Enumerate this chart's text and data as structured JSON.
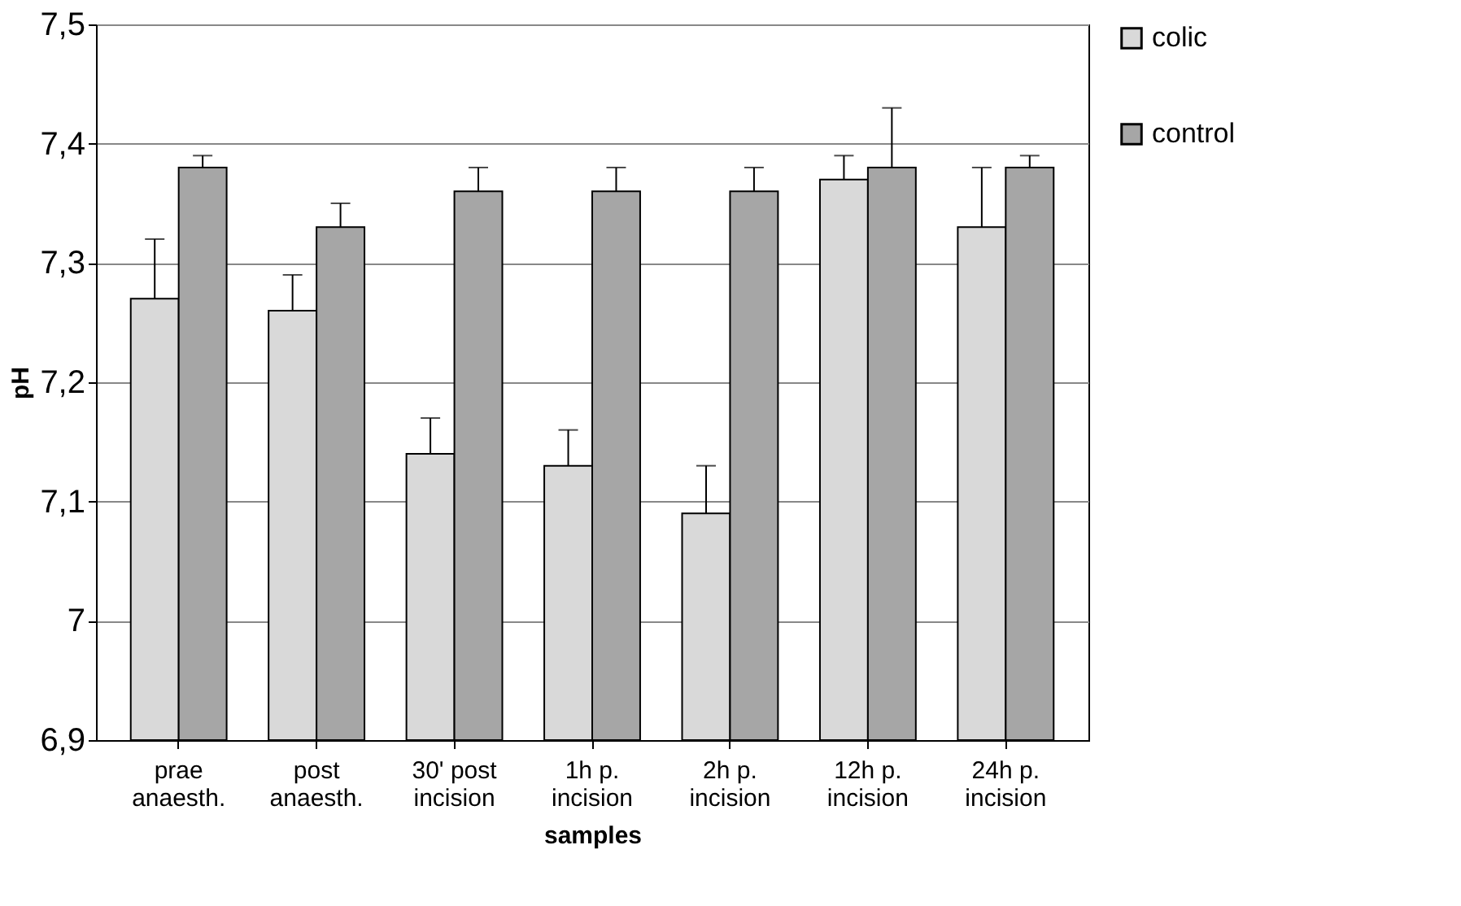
{
  "chart_data": {
    "type": "bar",
    "xlabel": "samples",
    "ylabel": "pH",
    "categories": [
      "prae\nanaesth.",
      "post\nanaesth.",
      "30' post\nincision",
      "1h p.\nincision",
      "2h p.\nincision",
      "12h p.\nincision",
      "24h p.\nincision"
    ],
    "series": [
      {
        "name": "colic",
        "color": "#d9d9d9",
        "values": [
          7.27,
          7.26,
          7.14,
          7.13,
          7.09,
          7.37,
          7.33
        ],
        "errors": [
          [
            7.27,
            7.32
          ],
          [
            7.26,
            7.29
          ],
          [
            7.14,
            7.17
          ],
          [
            7.13,
            7.16
          ],
          [
            7.09,
            7.13
          ],
          [
            7.37,
            7.39
          ],
          [
            7.33,
            7.38
          ]
        ]
      },
      {
        "name": "control",
        "color": "#a6a6a6",
        "values": [
          7.38,
          7.33,
          7.36,
          7.36,
          7.36,
          7.38,
          7.38
        ],
        "errors": [
          [
            7.38,
            7.39
          ],
          [
            7.33,
            7.35
          ],
          [
            7.36,
            7.38
          ],
          [
            7.36,
            7.38
          ],
          [
            7.36,
            7.38
          ],
          [
            7.38,
            7.43
          ],
          [
            7.38,
            7.39
          ]
        ]
      }
    ],
    "ylim": [
      6.9,
      7.5
    ],
    "yticks": [
      {
        "value": 6.9,
        "label": "6,9"
      },
      7,
      {
        "value": 7.1,
        "label": "7,1"
      },
      {
        "value": 7.2,
        "label": "7,2"
      },
      {
        "value": 7.3,
        "label": "7,3"
      },
      {
        "value": 7.4,
        "label": "7,4"
      },
      {
        "value": 7.5,
        "label": "7,5"
      }
    ],
    "grid": "y",
    "legend": "right"
  }
}
